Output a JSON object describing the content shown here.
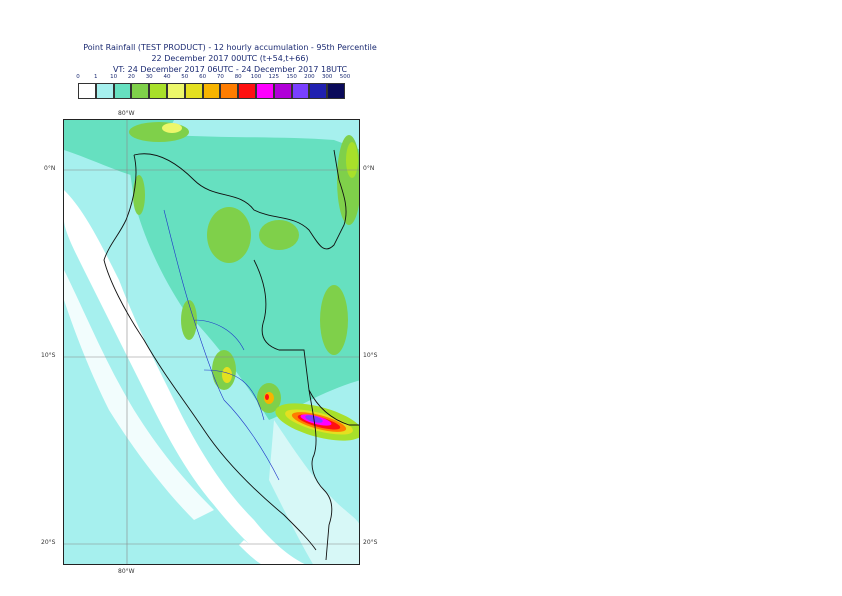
{
  "title": {
    "line1": "Point Rainfall (TEST PRODUCT) - 12 hourly accumulation - 95th Percentile",
    "line2": "22 December 2017 00UTC (t+54,t+66)",
    "line3": "VT: 24 December 2017 06UTC - 24 December 2017 18UTC"
  },
  "legend": {
    "thresholds": [
      "0",
      "1",
      "10",
      "20",
      "30",
      "40",
      "50",
      "60",
      "70",
      "80",
      "100",
      "125",
      "150",
      "200",
      "300",
      "500"
    ],
    "colors": [
      "#ffffff",
      "#a6f0ee",
      "#66e0c0",
      "#7fd04a",
      "#a8e02a",
      "#ecf76a",
      "#e4e020",
      "#f7b400",
      "#ff7d00",
      "#ff1010",
      "#ff00ff",
      "#b000d8",
      "#7a40ff",
      "#2020b0",
      "#0a0a5a"
    ]
  },
  "axes": {
    "lon_top": "80°W",
    "lon_bottom": "80°W",
    "lat_0_left": "0°N",
    "lat_0_right": "0°N",
    "lat_10_left": "10°S",
    "lat_10_right": "10°S",
    "lat_20_left": "20°S",
    "lat_20_right": "20°S"
  }
}
